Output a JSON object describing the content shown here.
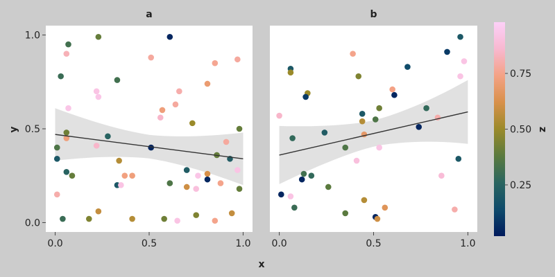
{
  "chart_data": {
    "type": "scatter",
    "xlabel": "x",
    "ylabel": "y",
    "colorbar_label": "z",
    "xlim": [
      -0.05,
      1.05
    ],
    "ylim": [
      -0.05,
      1.05
    ],
    "xticks": [
      {
        "value": 0,
        "label": "0.0"
      },
      {
        "value": 0.5,
        "label": "0.5"
      },
      {
        "value": 1,
        "label": "1.0"
      }
    ],
    "yticks": [
      {
        "value": 0,
        "label": "0.0"
      },
      {
        "value": 0.5,
        "label": "0.5"
      },
      {
        "value": 1,
        "label": "1.0"
      }
    ],
    "colorbar": {
      "range": [
        0.02,
        0.98
      ],
      "ticks": [
        {
          "value": 0.25,
          "label": "0.25"
        },
        {
          "value": 0.5,
          "label": "0.50"
        },
        {
          "value": 0.75,
          "label": "0.75"
        }
      ],
      "stops": [
        "#001a5c",
        "#0e4a6b",
        "#2a6560",
        "#5a7a3e",
        "#9a8a2a",
        "#d8904a",
        "#f4a285",
        "#f8b8d0",
        "#fcd0f8"
      ]
    },
    "point_colors_note": "",
    "facets": [
      {
        "title": "a",
        "trend": {
          "x": [
            0.0,
            1.0
          ],
          "y": [
            0.47,
            0.34
          ],
          "band_lower": [
            0.33,
            0.2
          ],
          "band_upper": [
            0.61,
            0.48
          ]
        },
        "points": [
          {
            "x": 0.06,
            "y": 0.9,
            "z": 0.82
          },
          {
            "x": 0.07,
            "y": 0.95,
            "z": 0.32
          },
          {
            "x": 0.03,
            "y": 0.78,
            "z": 0.3
          },
          {
            "x": 0.23,
            "y": 0.99,
            "z": 0.4
          },
          {
            "x": 0.61,
            "y": 0.99,
            "z": 0.05
          },
          {
            "x": 0.51,
            "y": 0.88,
            "z": 0.78
          },
          {
            "x": 0.97,
            "y": 0.87,
            "z": 0.78
          },
          {
            "x": 0.85,
            "y": 0.85,
            "z": 0.76
          },
          {
            "x": 0.33,
            "y": 0.76,
            "z": 0.32
          },
          {
            "x": 0.81,
            "y": 0.74,
            "z": 0.7
          },
          {
            "x": 0.66,
            "y": 0.7,
            "z": 0.8
          },
          {
            "x": 0.22,
            "y": 0.7,
            "z": 0.92
          },
          {
            "x": 0.23,
            "y": 0.67,
            "z": 0.93
          },
          {
            "x": 0.64,
            "y": 0.63,
            "z": 0.78
          },
          {
            "x": 0.07,
            "y": 0.61,
            "z": 0.93
          },
          {
            "x": 0.57,
            "y": 0.6,
            "z": 0.72
          },
          {
            "x": 0.56,
            "y": 0.56,
            "z": 0.85
          },
          {
            "x": 0.73,
            "y": 0.53,
            "z": 0.5
          },
          {
            "x": 0.98,
            "y": 0.5,
            "z": 0.4
          },
          {
            "x": 0.06,
            "y": 0.48,
            "z": 0.42
          },
          {
            "x": 0.06,
            "y": 0.45,
            "z": 0.72
          },
          {
            "x": 0.28,
            "y": 0.46,
            "z": 0.25
          },
          {
            "x": 0.91,
            "y": 0.43,
            "z": 0.78
          },
          {
            "x": 0.01,
            "y": 0.4,
            "z": 0.35
          },
          {
            "x": 0.51,
            "y": 0.4,
            "z": 0.05
          },
          {
            "x": 0.22,
            "y": 0.41,
            "z": 0.85
          },
          {
            "x": 0.86,
            "y": 0.36,
            "z": 0.4
          },
          {
            "x": 0.93,
            "y": 0.34,
            "z": 0.22
          },
          {
            "x": 0.01,
            "y": 0.34,
            "z": 0.2
          },
          {
            "x": 0.34,
            "y": 0.33,
            "z": 0.55
          },
          {
            "x": 0.7,
            "y": 0.28,
            "z": 0.22
          },
          {
            "x": 0.06,
            "y": 0.27,
            "z": 0.25
          },
          {
            "x": 0.97,
            "y": 0.28,
            "z": 0.92
          },
          {
            "x": 0.81,
            "y": 0.26,
            "z": 0.62
          },
          {
            "x": 0.37,
            "y": 0.25,
            "z": 0.73
          },
          {
            "x": 0.41,
            "y": 0.25,
            "z": 0.72
          },
          {
            "x": 0.09,
            "y": 0.25,
            "z": 0.4
          },
          {
            "x": 0.81,
            "y": 0.23,
            "z": 0.05
          },
          {
            "x": 0.76,
            "y": 0.25,
            "z": 0.93
          },
          {
            "x": 0.33,
            "y": 0.2,
            "z": 0.2
          },
          {
            "x": 0.35,
            "y": 0.2,
            "z": 0.92
          },
          {
            "x": 0.61,
            "y": 0.21,
            "z": 0.35
          },
          {
            "x": 0.88,
            "y": 0.21,
            "z": 0.75
          },
          {
            "x": 0.7,
            "y": 0.19,
            "z": 0.6
          },
          {
            "x": 0.75,
            "y": 0.18,
            "z": 0.9
          },
          {
            "x": 0.98,
            "y": 0.18,
            "z": 0.4
          },
          {
            "x": 0.01,
            "y": 0.15,
            "z": 0.8
          },
          {
            "x": 0.23,
            "y": 0.06,
            "z": 0.58
          },
          {
            "x": 0.75,
            "y": 0.04,
            "z": 0.45
          },
          {
            "x": 0.94,
            "y": 0.05,
            "z": 0.58
          },
          {
            "x": 0.04,
            "y": 0.02,
            "z": 0.3
          },
          {
            "x": 0.18,
            "y": 0.02,
            "z": 0.45
          },
          {
            "x": 0.41,
            "y": 0.02,
            "z": 0.55
          },
          {
            "x": 0.58,
            "y": 0.02,
            "z": 0.42
          },
          {
            "x": 0.65,
            "y": 0.01,
            "z": 0.92
          },
          {
            "x": 0.85,
            "y": 0.01,
            "z": 0.75
          }
        ]
      },
      {
        "title": "b",
        "trend": {
          "x": [
            0.0,
            1.0
          ],
          "y": [
            0.36,
            0.59
          ],
          "band_lower": [
            0.21,
            0.42
          ],
          "band_upper": [
            0.52,
            0.76
          ]
        },
        "points": [
          {
            "x": 0.96,
            "y": 0.99,
            "z": 0.2
          },
          {
            "x": 0.89,
            "y": 0.91,
            "z": 0.1
          },
          {
            "x": 0.39,
            "y": 0.9,
            "z": 0.75
          },
          {
            "x": 0.98,
            "y": 0.86,
            "z": 0.92
          },
          {
            "x": 0.68,
            "y": 0.83,
            "z": 0.15
          },
          {
            "x": 0.06,
            "y": 0.82,
            "z": 0.2
          },
          {
            "x": 0.06,
            "y": 0.8,
            "z": 0.5
          },
          {
            "x": 0.42,
            "y": 0.78,
            "z": 0.45
          },
          {
            "x": 0.96,
            "y": 0.78,
            "z": 0.92
          },
          {
            "x": 0.6,
            "y": 0.71,
            "z": 0.74
          },
          {
            "x": 0.15,
            "y": 0.69,
            "z": 0.5
          },
          {
            "x": 0.61,
            "y": 0.68,
            "z": 0.05
          },
          {
            "x": 0.14,
            "y": 0.67,
            "z": 0.1
          },
          {
            "x": 0.53,
            "y": 0.61,
            "z": 0.42
          },
          {
            "x": 0.78,
            "y": 0.61,
            "z": 0.28
          },
          {
            "x": 0.44,
            "y": 0.58,
            "z": 0.2
          },
          {
            "x": 0.0,
            "y": 0.57,
            "z": 0.85
          },
          {
            "x": 0.84,
            "y": 0.56,
            "z": 0.8
          },
          {
            "x": 0.51,
            "y": 0.55,
            "z": 0.35
          },
          {
            "x": 0.44,
            "y": 0.54,
            "z": 0.55
          },
          {
            "x": 0.74,
            "y": 0.51,
            "z": 0.05
          },
          {
            "x": 0.24,
            "y": 0.48,
            "z": 0.22
          },
          {
            "x": 0.45,
            "y": 0.47,
            "z": 0.68
          },
          {
            "x": 0.07,
            "y": 0.45,
            "z": 0.28
          },
          {
            "x": 0.35,
            "y": 0.4,
            "z": 0.35
          },
          {
            "x": 0.53,
            "y": 0.4,
            "z": 0.92
          },
          {
            "x": 0.41,
            "y": 0.33,
            "z": 0.9
          },
          {
            "x": 0.13,
            "y": 0.26,
            "z": 0.32
          },
          {
            "x": 0.17,
            "y": 0.25,
            "z": 0.28
          },
          {
            "x": 0.86,
            "y": 0.25,
            "z": 0.88
          },
          {
            "x": 0.95,
            "y": 0.34,
            "z": 0.2
          },
          {
            "x": 0.12,
            "y": 0.23,
            "z": 0.05
          },
          {
            "x": 0.26,
            "y": 0.19,
            "z": 0.38
          },
          {
            "x": 0.01,
            "y": 0.15,
            "z": 0.05
          },
          {
            "x": 0.06,
            "y": 0.14,
            "z": 0.92
          },
          {
            "x": 0.45,
            "y": 0.12,
            "z": 0.55
          },
          {
            "x": 0.08,
            "y": 0.08,
            "z": 0.3
          },
          {
            "x": 0.56,
            "y": 0.08,
            "z": 0.65
          },
          {
            "x": 0.93,
            "y": 0.07,
            "z": 0.8
          },
          {
            "x": 0.35,
            "y": 0.05,
            "z": 0.38
          },
          {
            "x": 0.51,
            "y": 0.03,
            "z": 0.05
          },
          {
            "x": 0.52,
            "y": 0.02,
            "z": 0.6
          }
        ]
      }
    ]
  }
}
